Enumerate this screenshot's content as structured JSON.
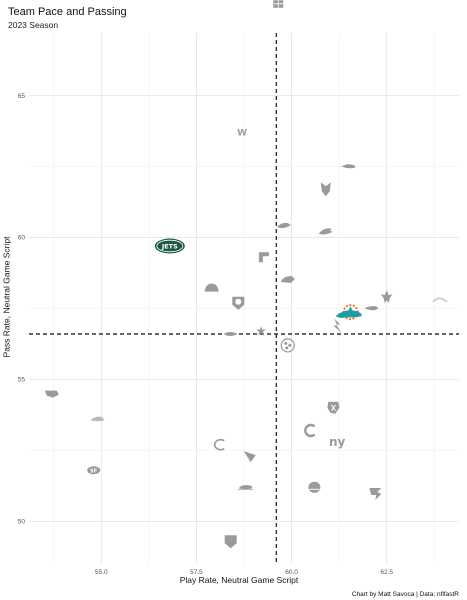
{
  "chart_data": {
    "type": "scatter",
    "title": "Team Pace and Passing",
    "subtitle": "2023 Season",
    "xlabel": "Play Rate, Neutral Game Script",
    "ylabel": "Pass Rate, Neutral Game Script",
    "caption": "Chart by Matt Savoca | Data: nflfastR",
    "xlim": [
      53.1,
      64.4
    ],
    "ylim": [
      48.5,
      67.2
    ],
    "x_ticks": [
      "55.0",
      "57.5",
      "60.0",
      "62.5"
    ],
    "x_tick_values": [
      55.0,
      57.5,
      60.0,
      62.5
    ],
    "y_ticks": [
      "50",
      "55",
      "60",
      "65"
    ],
    "y_tick_values": [
      50,
      55,
      60,
      65
    ],
    "grid": true,
    "reference_lines": {
      "x": 59.6,
      "y": 56.6
    },
    "highlight_colors": {
      "jets": "#1d5a42",
      "dolphins": "#1a9ea3",
      "dolphins_accent": "#f26a1b",
      "logo_gray": "#9a9a9a"
    },
    "points": [
      {
        "team": "CIN",
        "icon": "bengals-logo-icon",
        "x": 59.65,
        "y": 68.3
      },
      {
        "team": "WAS",
        "icon": "commanders-logo-icon",
        "x": 58.7,
        "y": 63.7
      },
      {
        "team": "SEA",
        "icon": "seahawks-logo-icon",
        "x": 61.5,
        "y": 62.5
      },
      {
        "team": "MIN",
        "icon": "vikings-logo-icon",
        "x": 60.9,
        "y": 61.7
      },
      {
        "team": "NYJ",
        "icon": "jets-logo-icon",
        "label": "JETS",
        "x": 56.8,
        "y": 59.7
      },
      {
        "team": "DEN",
        "icon": "broncos-logo-icon",
        "x": 59.8,
        "y": 60.4
      },
      {
        "team": "PHI",
        "icon": "eagles-logo-icon",
        "x": 60.9,
        "y": 60.2
      },
      {
        "team": "CHI",
        "icon": "bears-logo-icon",
        "x": 59.3,
        "y": 59.3
      },
      {
        "team": "JAX",
        "icon": "jaguars-logo-icon",
        "x": 59.9,
        "y": 58.5
      },
      {
        "team": "NO",
        "icon": "saints-logo-icon",
        "x": 62.5,
        "y": 57.9
      },
      {
        "team": "LAR",
        "icon": "rams-logo-icon",
        "x": 63.9,
        "y": 57.8
      },
      {
        "team": "KC",
        "icon": "chiefs-logo-icon",
        "x": 57.9,
        "y": 58.2
      },
      {
        "team": "LV",
        "icon": "raiders-logo-icon",
        "x": 58.6,
        "y": 57.7
      },
      {
        "team": "MIA",
        "icon": "dolphins-logo-icon",
        "x": 61.5,
        "y": 57.3
      },
      {
        "team": "NE",
        "icon": "patriots-logo-icon",
        "x": 62.1,
        "y": 57.5
      },
      {
        "team": "LAC",
        "icon": "chargers-logo-icon",
        "x": 61.2,
        "y": 56.9
      },
      {
        "team": "BAL",
        "icon": "ravens-logo-icon",
        "x": 58.4,
        "y": 56.6
      },
      {
        "team": "DAL",
        "icon": "cowboys-logo-icon",
        "x": 59.2,
        "y": 56.7
      },
      {
        "team": "PIT",
        "icon": "steelers-logo-icon",
        "x": 59.9,
        "y": 56.2
      },
      {
        "team": "TB",
        "icon": "buccaneers-logo-icon",
        "x": 53.7,
        "y": 54.5
      },
      {
        "team": "HOU",
        "icon": "texans-logo-icon",
        "x": 61.1,
        "y": 54.0
      },
      {
        "team": "DET",
        "icon": "lions-logo-icon",
        "x": 54.9,
        "y": 53.6
      },
      {
        "team": "IND",
        "icon": "colts-logo-icon",
        "x": 60.5,
        "y": 53.2
      },
      {
        "team": "NYG",
        "icon": "giants-logo-icon",
        "label": "ny",
        "x": 61.2,
        "y": 52.8
      },
      {
        "team": "GB",
        "icon": "packers-logo-icon",
        "x": 58.1,
        "y": 52.7
      },
      {
        "team": "ARI",
        "icon": "cardinals-logo-icon",
        "x": 58.9,
        "y": 52.3
      },
      {
        "team": "SF",
        "icon": "niners-logo-icon",
        "label": "SF",
        "x": 54.8,
        "y": 51.8
      },
      {
        "team": "CLE",
        "icon": "browns-logo-icon",
        "x": 60.6,
        "y": 51.2
      },
      {
        "team": "BUF",
        "icon": "bills-logo-icon",
        "x": 58.8,
        "y": 51.2
      },
      {
        "team": "ATL",
        "icon": "falcons-logo-icon",
        "x": 62.2,
        "y": 51.0
      },
      {
        "team": "TEN",
        "icon": "titans-logo-icon",
        "x": 58.4,
        "y": 49.3
      }
    ]
  }
}
